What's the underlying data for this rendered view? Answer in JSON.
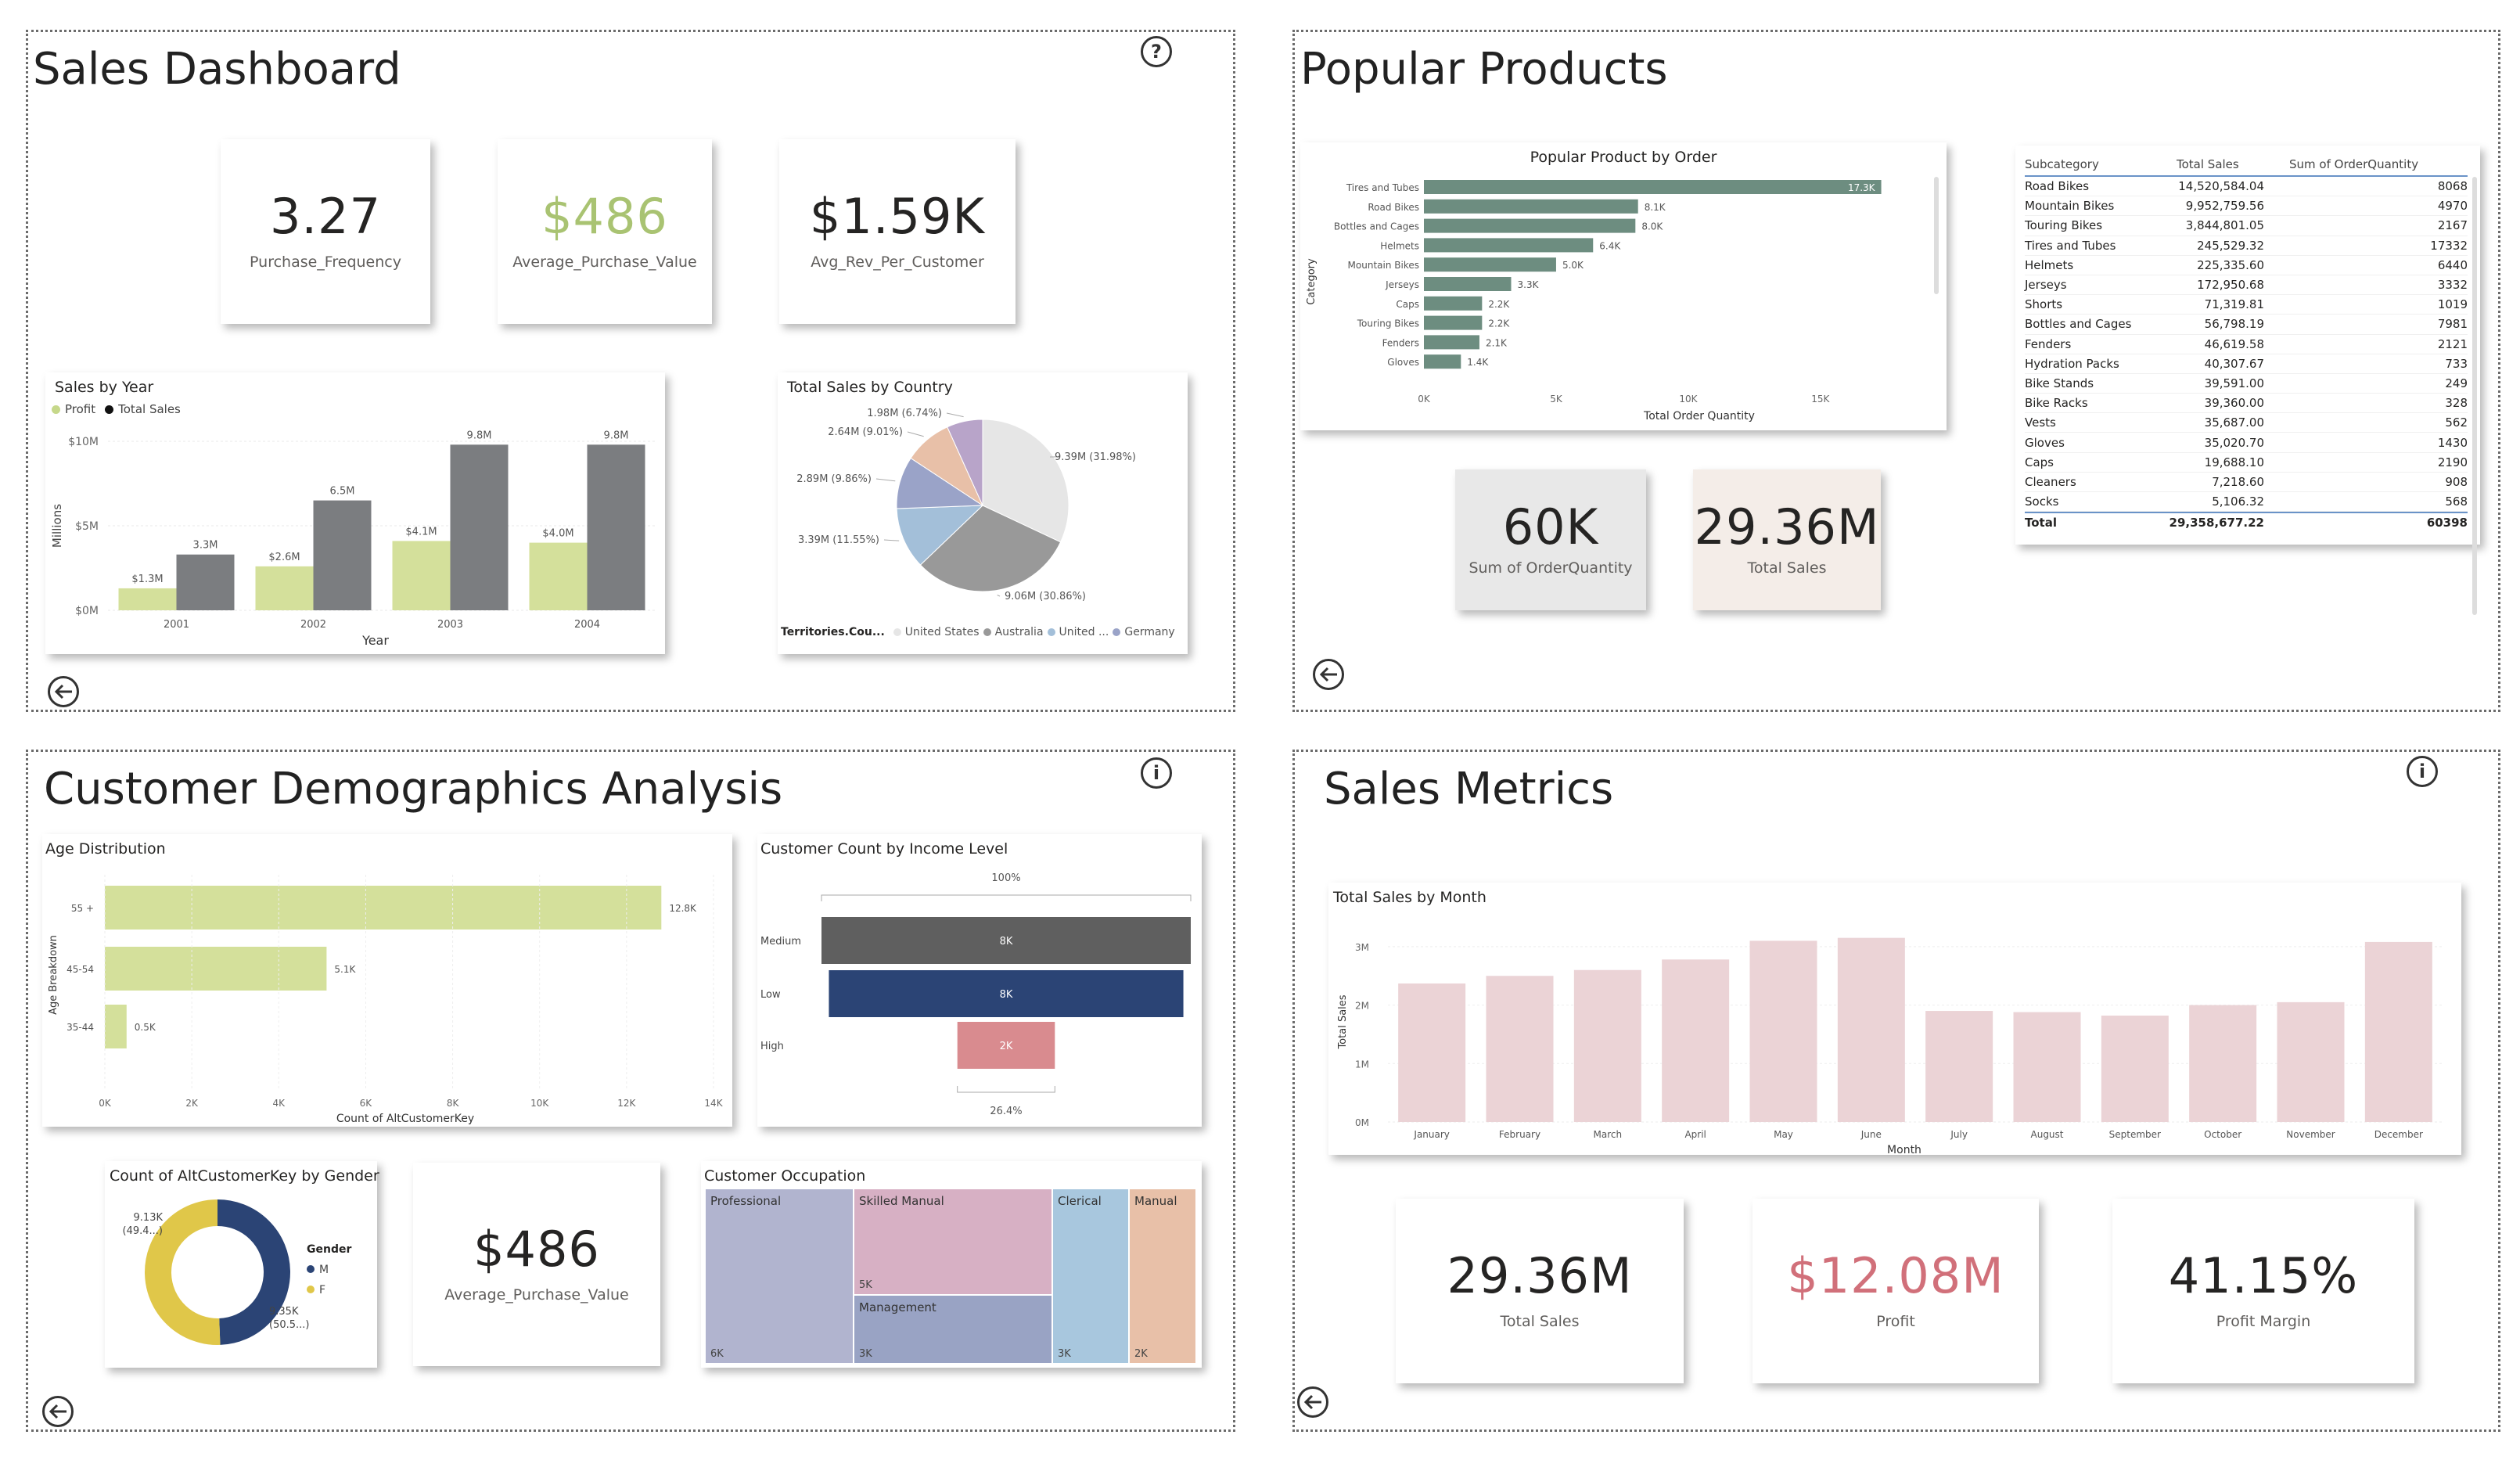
{
  "panels": {
    "sales_dashboard": {
      "title": "Sales Dashboard",
      "kpis": [
        {
          "value": "3.27",
          "label": "Purchase_Frequency",
          "color": "#252423"
        },
        {
          "value": "$486",
          "label": "Average_Purchase_Value",
          "color": "#a9c372"
        },
        {
          "value": "$1.59K",
          "label": "Avg_Rev_Per_Customer",
          "color": "#252423"
        }
      ],
      "sales_by_year": {
        "title": "Sales by Year",
        "legend": [
          "Profit",
          "Total Sales"
        ],
        "ylabel": "Millions",
        "xlabel": "Year"
      },
      "total_sales_by_country": {
        "title": "Total Sales by Country",
        "legend_title": "Territories.Cou...",
        "legend": [
          "United States",
          "Australia",
          "United ...",
          "Germany"
        ]
      }
    },
    "popular_products": {
      "title": "Popular Products",
      "chart": {
        "title": "Popular Product by Order",
        "ylabel": "Category",
        "xlabel": "Total Order Quantity"
      },
      "kpis": [
        {
          "value": "60K",
          "label": "Sum of OrderQuantity"
        },
        {
          "value": "29.36M",
          "label": "Total Sales"
        }
      ],
      "table": {
        "headers": [
          "Subcategory",
          "Total Sales",
          "Sum of OrderQuantity"
        ],
        "rows": [
          [
            "Road Bikes",
            "14,520,584.04",
            "8068"
          ],
          [
            "Mountain Bikes",
            "9,952,759.56",
            "4970"
          ],
          [
            "Touring Bikes",
            "3,844,801.05",
            "2167"
          ],
          [
            "Tires and Tubes",
            "245,529.32",
            "17332"
          ],
          [
            "Helmets",
            "225,335.60",
            "6440"
          ],
          [
            "Jerseys",
            "172,950.68",
            "3332"
          ],
          [
            "Shorts",
            "71,319.81",
            "1019"
          ],
          [
            "Bottles and Cages",
            "56,798.19",
            "7981"
          ],
          [
            "Fenders",
            "46,619.58",
            "2121"
          ],
          [
            "Hydration Packs",
            "40,307.67",
            "733"
          ],
          [
            "Bike Stands",
            "39,591.00",
            "249"
          ],
          [
            "Bike Racks",
            "39,360.00",
            "328"
          ],
          [
            "Vests",
            "35,687.00",
            "562"
          ],
          [
            "Gloves",
            "35,020.70",
            "1430"
          ],
          [
            "Caps",
            "19,688.10",
            "2190"
          ],
          [
            "Cleaners",
            "7,218.60",
            "908"
          ],
          [
            "Socks",
            "5,106.32",
            "568"
          ]
        ],
        "total": [
          "Total",
          "29,358,677.22",
          "60398"
        ]
      }
    },
    "customer_demographics": {
      "title": "Customer Demographics Analysis",
      "age": {
        "title": "Age Distribution",
        "ylabel": "Age Breakdown",
        "xlabel": "Count of AltCustomerKey"
      },
      "income": {
        "title": "Customer Count by Income Level",
        "top_label": "100%",
        "bottom_label": "26.4%"
      },
      "gender": {
        "title": "Count of AltCustomerKey by Gender",
        "legend_title": "Gender",
        "legend": [
          "M",
          "F"
        ],
        "label_top": [
          "9.13K",
          "(49.4...)"
        ],
        "label_bottom": [
          "9.35K",
          "(50.5...)"
        ]
      },
      "kpi": {
        "value": "$486",
        "label": "Average_Purchase_Value"
      },
      "occupation": {
        "title": "Customer Occupation"
      }
    },
    "sales_metrics": {
      "title": "Sales Metrics",
      "chart": {
        "title": "Total Sales by Month",
        "ylabel": "Total Sales",
        "xlabel": "Month"
      },
      "kpis": [
        {
          "value": "29.36M",
          "label": "Total Sales",
          "color": "#252423"
        },
        {
          "value": "$12.08M",
          "label": "Profit",
          "color": "#d1707a"
        },
        {
          "value": "41.15%",
          "label": "Profit Margin",
          "color": "#252423"
        }
      ]
    }
  },
  "chart_data": [
    {
      "type": "bar",
      "title": "Sales by Year",
      "xlabel": "Year",
      "ylabel": "Millions",
      "categories": [
        "2001",
        "2002",
        "2003",
        "2004"
      ],
      "series": [
        {
          "name": "Profit",
          "values": [
            1.3,
            2.6,
            4.1,
            4.0
          ],
          "labels": [
            "$1.3M",
            "$2.6M",
            "$4.1M",
            "$4.0M"
          ]
        },
        {
          "name": "Total Sales",
          "values": [
            3.3,
            6.5,
            9.8,
            9.8
          ],
          "labels": [
            "3.3M",
            "6.5M",
            "9.8M",
            "9.8M"
          ]
        }
      ],
      "y_ticks": [
        "$0M",
        "$5M",
        "$10M"
      ],
      "ylim": [
        0,
        10
      ],
      "colors": [
        "#d4e09b",
        "#7b7d80"
      ]
    },
    {
      "type": "pie",
      "title": "Total Sales by Country",
      "slices": [
        {
          "value": 9.39,
          "label": "9.39M (31.98%)",
          "color": "#e6e6e6"
        },
        {
          "value": 9.06,
          "label": "9.06M (30.86%)",
          "color": "#999999"
        },
        {
          "value": 3.39,
          "label": "3.39M (11.55%)",
          "color": "#a3bfd9"
        },
        {
          "value": 2.89,
          "label": "2.89M (9.86%)",
          "color": "#9aa3c8"
        },
        {
          "value": 2.64,
          "label": "2.64M (9.01%)",
          "color": "#e8c0a8"
        },
        {
          "value": 1.98,
          "label": "1.98M (6.74%)",
          "color": "#b8a4c9"
        }
      ]
    },
    {
      "type": "bar",
      "orientation": "horizontal",
      "title": "Popular Product by Order",
      "xlabel": "Total Order Quantity",
      "ylabel": "Category",
      "categories": [
        "Tires and Tubes",
        "Road Bikes",
        "Bottles and Cages",
        "Helmets",
        "Mountain Bikes",
        "Jerseys",
        "Caps",
        "Touring Bikes",
        "Fenders",
        "Gloves"
      ],
      "values": [
        17.3,
        8.1,
        8.0,
        6.4,
        5.0,
        3.3,
        2.2,
        2.2,
        2.1,
        1.4
      ],
      "labels": [
        "17.3K",
        "8.1K",
        "8.0K",
        "6.4K",
        "5.0K",
        "3.3K",
        "2.2K",
        "2.2K",
        "2.1K",
        "1.4K"
      ],
      "x_ticks": [
        "0K",
        "5K",
        "10K",
        "15K"
      ],
      "xlim": [
        0,
        19
      ],
      "color": "#6d8d80"
    },
    {
      "type": "bar",
      "orientation": "horizontal",
      "title": "Age Distribution",
      "xlabel": "Count of AltCustomerKey",
      "ylabel": "Age Breakdown",
      "categories": [
        "55 +",
        "45-54",
        "35-44"
      ],
      "values": [
        12.8,
        5.1,
        0.5
      ],
      "labels": [
        "12.8K",
        "5.1K",
        "0.5K"
      ],
      "x_ticks": [
        "0K",
        "2K",
        "4K",
        "6K",
        "8K",
        "10K",
        "12K",
        "14K"
      ],
      "xlim": [
        0,
        14
      ],
      "color": "#d4e09b"
    },
    {
      "type": "bar",
      "orientation": "funnel",
      "title": "Customer Count by Income Level",
      "categories": [
        "Medium",
        "Low",
        "High"
      ],
      "values": [
        8,
        8,
        2
      ],
      "labels": [
        "8K",
        "8K",
        "2K"
      ],
      "colors": [
        "#5f5f5f",
        "#2b4475",
        "#d98b8f"
      ]
    },
    {
      "type": "pie",
      "donut": true,
      "title": "Count of AltCustomerKey by Gender",
      "slices": [
        {
          "name": "M",
          "value": 9.13,
          "color": "#2b4475"
        },
        {
          "name": "F",
          "value": 9.35,
          "color": "#e0c749"
        }
      ]
    },
    {
      "type": "treemap",
      "title": "Customer Occupation",
      "items": [
        {
          "name": "Professional",
          "label": "6K",
          "color": "#b1b4cf"
        },
        {
          "name": "Skilled Manual",
          "label": "5K",
          "color": "#d7b0c4"
        },
        {
          "name": "Management",
          "label": "3K",
          "color": "#99a3c4"
        },
        {
          "name": "Clerical",
          "label": "3K",
          "color": "#a8c7de"
        },
        {
          "name": "Manual",
          "label": "2K",
          "color": "#e8c0a8"
        }
      ]
    },
    {
      "type": "bar",
      "title": "Total Sales by Month",
      "xlabel": "Month",
      "ylabel": "Total Sales",
      "categories": [
        "January",
        "February",
        "March",
        "April",
        "May",
        "June",
        "July",
        "August",
        "September",
        "October",
        "November",
        "December"
      ],
      "values": [
        2.37,
        2.5,
        2.6,
        2.78,
        3.1,
        3.15,
        1.9,
        1.88,
        1.82,
        2.0,
        2.05,
        3.08
      ],
      "y_ticks": [
        "0M",
        "1M",
        "2M",
        "3M"
      ],
      "ylim": [
        0,
        3.4
      ],
      "color": "#ebd3d6"
    }
  ]
}
